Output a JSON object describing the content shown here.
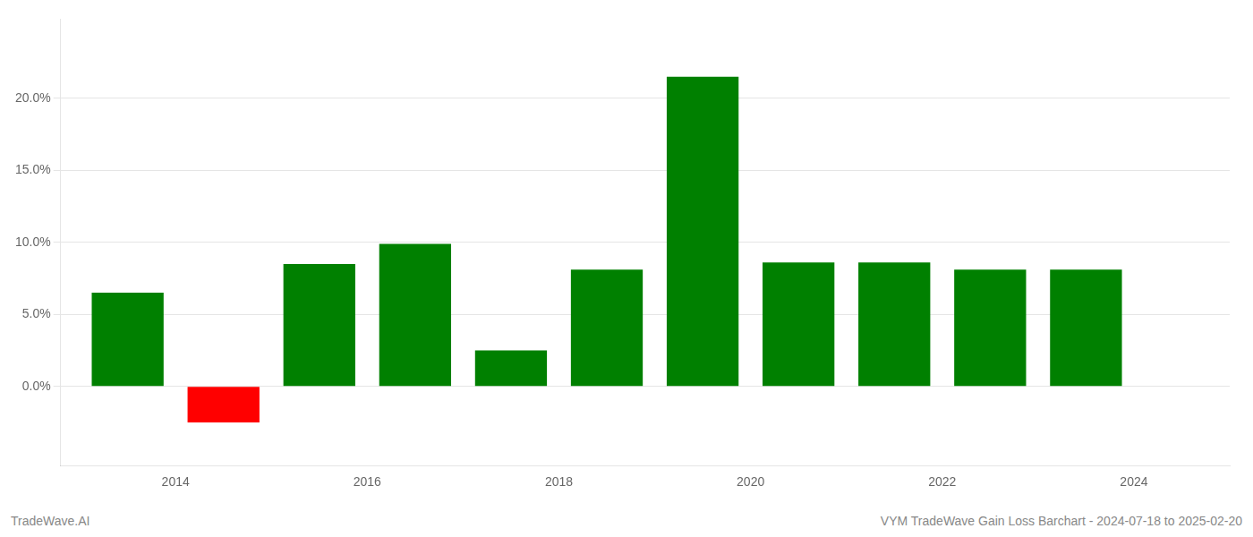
{
  "chart_data": {
    "type": "bar",
    "x": [
      2013.5,
      2014.5,
      2015.5,
      2016.5,
      2017.5,
      2018.5,
      2019.5,
      2020.5,
      2021.5,
      2022.5,
      2023.5
    ],
    "values": [
      0.065,
      -0.025,
      0.085,
      0.099,
      0.025,
      0.081,
      0.215,
      0.086,
      0.086,
      0.081,
      0.081
    ],
    "colors": [
      "#008000",
      "#ff0000",
      "#008000",
      "#008000",
      "#008000",
      "#008000",
      "#008000",
      "#008000",
      "#008000",
      "#008000",
      "#008000"
    ],
    "xlim": [
      2012.8,
      2025.0
    ],
    "ylim": [
      -0.055,
      0.255
    ],
    "xticks": [
      2014,
      2016,
      2018,
      2020,
      2022,
      2024
    ],
    "yticks": [
      {
        "value": 0.0,
        "label": "0.0%"
      },
      {
        "value": 0.05,
        "label": "5.0%"
      },
      {
        "value": 0.1,
        "label": "10.0%"
      },
      {
        "value": 0.15,
        "label": "15.0%"
      },
      {
        "value": 0.2,
        "label": "20.0%"
      }
    ],
    "grid": true,
    "annotations": [
      "TradeWave.AI",
      "VYM TradeWave Gain Loss Barchart - 2024-07-18 to 2025-02-20"
    ]
  }
}
